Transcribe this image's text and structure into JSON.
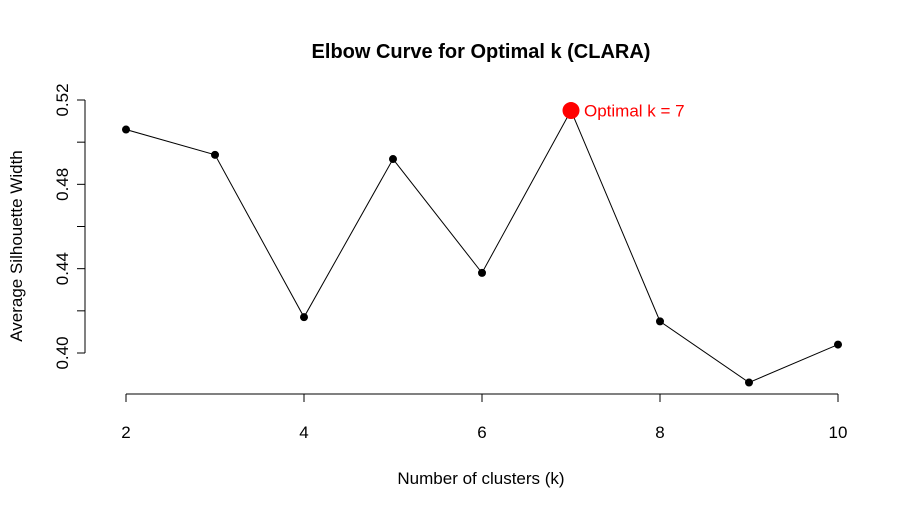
{
  "chart_data": {
    "type": "line",
    "title": "Elbow Curve for Optimal k (CLARA)",
    "xlabel": "Number of clusters (k)",
    "ylabel": "Average Silhouette Width",
    "x": [
      2,
      3,
      4,
      5,
      6,
      7,
      8,
      9,
      10
    ],
    "y": [
      0.506,
      0.494,
      0.417,
      0.492,
      0.438,
      0.515,
      0.415,
      0.386,
      0.404
    ],
    "xlim": [
      2,
      10
    ],
    "ylim": [
      0.4,
      0.52
    ],
    "xticks": [
      2,
      4,
      6,
      8,
      10
    ],
    "xtick_labels": [
      "2",
      "4",
      "6",
      "8",
      "10"
    ],
    "yticks": [
      0.4,
      0.42,
      0.44,
      0.46,
      0.48,
      0.5,
      0.52
    ],
    "ytick_labels": [
      "0.40",
      "0.44",
      "0.48",
      "0.52"
    ],
    "grid": false,
    "highlight": {
      "x": 7,
      "y": 0.515,
      "label": "Optimal k = 7",
      "color": "#ff0000"
    },
    "line_color": "#000000",
    "point_color": "#000000"
  }
}
